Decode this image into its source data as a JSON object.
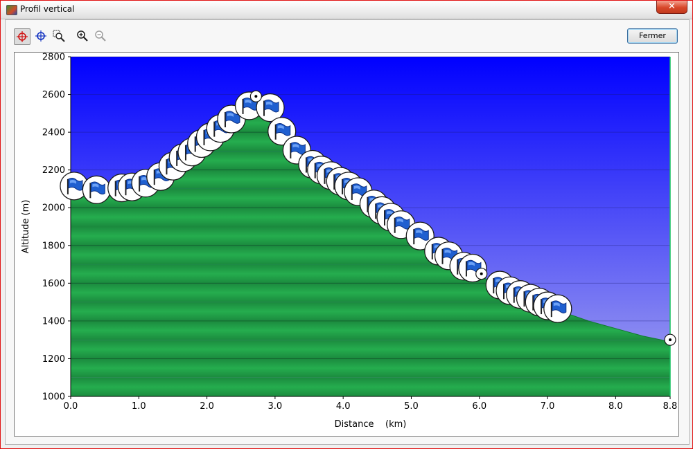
{
  "window": {
    "title": "Profil vertical",
    "close_glyph": "✕"
  },
  "toolbar": {
    "tools": [
      {
        "name": "crosshair-red-icon",
        "active": true
      },
      {
        "name": "crosshair-blue-icon",
        "active": false
      },
      {
        "name": "zoom-select-icon",
        "active": false
      },
      {
        "name": "zoom-in-icon",
        "active": false
      },
      {
        "name": "zoom-out-icon",
        "active": false,
        "disabled": true
      }
    ],
    "close_label": "Fermer"
  },
  "colors": {
    "sky_top": "#0000ff",
    "sky_bottom": "#9f9fef",
    "terrain": "#23a64a",
    "terrain_dark": "#167a34"
  },
  "chart_data": {
    "type": "area",
    "title": "",
    "xlabel": "Distance    (km)",
    "ylabel": "Altitude (m)",
    "xlim": [
      0.0,
      8.8
    ],
    "ylim": [
      1000,
      2800
    ],
    "x_ticks": [
      "0.0",
      "1.0",
      "2.0",
      "3.0",
      "4.0",
      "5.0",
      "6.0",
      "7.0",
      "8.0",
      "8.8"
    ],
    "x_tick_values": [
      0,
      1,
      2,
      3,
      4,
      5,
      6,
      7,
      8,
      8.8
    ],
    "y_ticks": [
      "1000",
      "1200",
      "1400",
      "1600",
      "1800",
      "2000",
      "2200",
      "2400",
      "2600",
      "2800"
    ],
    "y_tick_values": [
      1000,
      1200,
      1400,
      1600,
      1800,
      2000,
      2200,
      2400,
      2600,
      2800
    ],
    "grid": true,
    "profile": {
      "x": [
        0.0,
        0.3,
        0.6,
        0.9,
        1.2,
        1.5,
        1.8,
        2.1,
        2.3,
        2.5,
        2.7,
        2.9,
        3.1,
        3.3,
        3.6,
        4.0,
        4.4,
        4.8,
        5.2,
        5.6,
        6.0,
        6.4,
        6.8,
        7.2,
        7.6,
        8.0,
        8.4,
        8.8
      ],
      "y": [
        2090,
        2090,
        2095,
        2130,
        2200,
        2260,
        2320,
        2390,
        2440,
        2480,
        2500,
        2460,
        2370,
        2290,
        2210,
        2110,
        2020,
        1920,
        1810,
        1710,
        1640,
        1570,
        1510,
        1450,
        1400,
        1360,
        1320,
        1290
      ]
    },
    "waypoints": {
      "flags": [
        {
          "x": 0.05,
          "y": 2115
        },
        {
          "x": 0.38,
          "y": 2095
        },
        {
          "x": 0.75,
          "y": 2105
        },
        {
          "x": 0.9,
          "y": 2110
        },
        {
          "x": 1.1,
          "y": 2130
        },
        {
          "x": 1.32,
          "y": 2165
        },
        {
          "x": 1.5,
          "y": 2220
        },
        {
          "x": 1.65,
          "y": 2265
        },
        {
          "x": 1.78,
          "y": 2295
        },
        {
          "x": 1.92,
          "y": 2340
        },
        {
          "x": 2.05,
          "y": 2375
        },
        {
          "x": 2.2,
          "y": 2420
        },
        {
          "x": 2.36,
          "y": 2470
        },
        {
          "x": 2.62,
          "y": 2540
        },
        {
          "x": 2.93,
          "y": 2530
        },
        {
          "x": 3.1,
          "y": 2405
        },
        {
          "x": 3.32,
          "y": 2305
        },
        {
          "x": 3.55,
          "y": 2230
        },
        {
          "x": 3.68,
          "y": 2200
        },
        {
          "x": 3.82,
          "y": 2170
        },
        {
          "x": 3.96,
          "y": 2140
        },
        {
          "x": 4.08,
          "y": 2115
        },
        {
          "x": 4.22,
          "y": 2085
        },
        {
          "x": 4.45,
          "y": 2020
        },
        {
          "x": 4.57,
          "y": 1985
        },
        {
          "x": 4.7,
          "y": 1950
        },
        {
          "x": 4.85,
          "y": 1910
        },
        {
          "x": 5.13,
          "y": 1850
        },
        {
          "x": 5.4,
          "y": 1770
        },
        {
          "x": 5.55,
          "y": 1745
        },
        {
          "x": 5.77,
          "y": 1690
        },
        {
          "x": 5.9,
          "y": 1680
        },
        {
          "x": 6.3,
          "y": 1590
        },
        {
          "x": 6.45,
          "y": 1560
        },
        {
          "x": 6.6,
          "y": 1540
        },
        {
          "x": 6.75,
          "y": 1520
        },
        {
          "x": 6.88,
          "y": 1500
        },
        {
          "x": 7.0,
          "y": 1480
        },
        {
          "x": 7.15,
          "y": 1465
        }
      ],
      "points": [
        {
          "x": 2.72,
          "y": 2590
        },
        {
          "x": 6.03,
          "y": 1650
        },
        {
          "x": 8.8,
          "y": 1300
        }
      ]
    }
  }
}
